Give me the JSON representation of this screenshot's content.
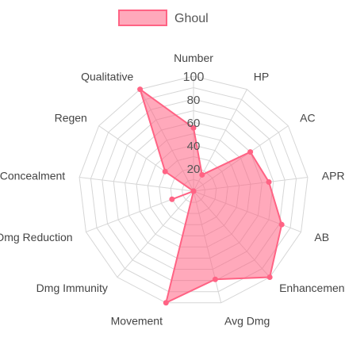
{
  "chart_data": {
    "type": "radar",
    "legend": {
      "position": "top",
      "label": "Ghoul"
    },
    "axes": [
      "Number",
      "HP",
      "AC",
      "APR",
      "AB",
      "Enhancement",
      "Avg Dmg",
      "Movement",
      "Dmg Immunity",
      "Dmg Reduction",
      "Concealment",
      "Regen",
      "Qualitative"
    ],
    "series": [
      {
        "name": "Ghoul",
        "values": [
          55,
          16,
          60,
          66,
          82,
          100,
          79,
          100,
          0,
          20,
          0,
          30,
          100
        ]
      }
    ],
    "scale": {
      "min": 0,
      "max": 100,
      "ticks": [
        20,
        40,
        60,
        80,
        100
      ]
    },
    "colors": {
      "fill": "rgba(255,99,132,0.55)",
      "stroke": "#ff6384",
      "grid": "#d6d6d6",
      "tick_text": "#555555",
      "label_text": "#444444"
    }
  }
}
